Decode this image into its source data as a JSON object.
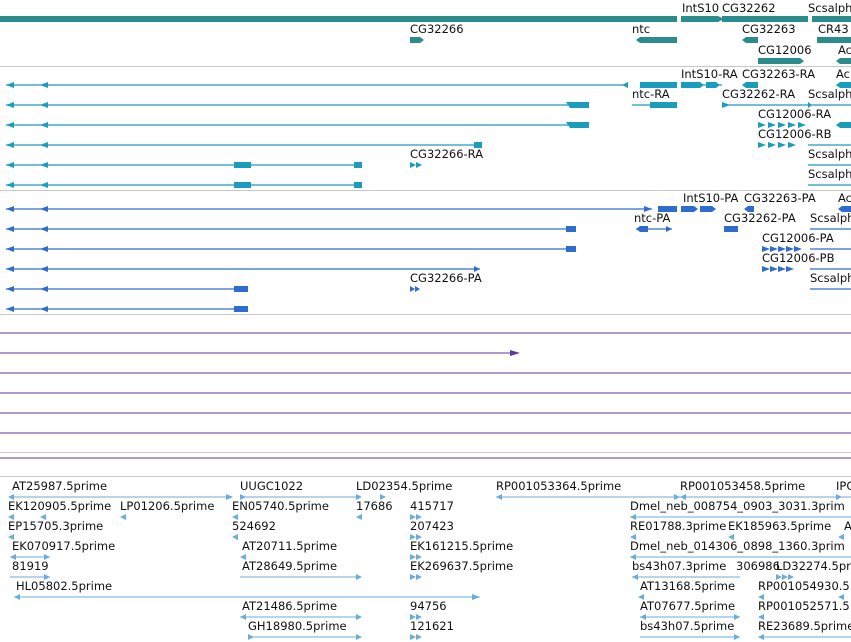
{
  "colors": {
    "gene": "#2a8c8c",
    "transcript": "#1a9cbc",
    "protein": "#2e6cd0",
    "alignment": "#5a3a9a",
    "est": "#6aaed8",
    "separator": "#c8c8c8"
  },
  "gene_labels": [
    "IntS10",
    "CG32262",
    "Scsalpha",
    "CG32263",
    "CR43",
    "CG32266",
    "ntc",
    "CG12006",
    "Ac"
  ],
  "transcript_labels": [
    "IntS10-RA",
    "CG32263-RA",
    "Ac",
    "ntc-RA",
    "CG32262-RA",
    "Scsalph",
    "CG12006-RA",
    "CG12006-RB",
    "Scsalph",
    "CG32266-RA",
    "Scsalph"
  ],
  "protein_labels": [
    "IntS10-PA",
    "CG32263-PA",
    "Ac",
    "ntc-PA",
    "CG32262-PA",
    "Scsalph",
    "CG12006-PA",
    "CG12006-PB",
    "Scsalph",
    "CG32266-PA"
  ],
  "est_labels": [
    "AT25987.5prime",
    "UUGC1022",
    "LD02354.5prime",
    "RP001053364.5prime",
    "RP001053458.5prime",
    "IPC",
    "EK120905.5prime",
    "LP01206.5prime",
    "EN05740.5prime",
    "17686",
    "415717",
    "Dmel_neb_008754_0903_3031.3prim",
    "EP15705.3prime",
    "524692",
    "207423",
    "RE01788.3prime",
    "EK185963.5prime",
    "A",
    "EK070917.5prime",
    "AT20711.5prime",
    "EK161215.5prime",
    "Dmel_neb_014306_0898_1360.3prim",
    "81919",
    "AT28649.5prime",
    "EK269637.5prime",
    "bs43h07.3prime",
    "306986",
    "LD32274.5prim",
    "HL05802.5prime",
    "AT13168.5prime",
    "RP001054930.5",
    "AT21486.5prime",
    "94756",
    "AT07677.5prime",
    "RP001052571.5",
    "GH18980.5prime",
    "121621",
    "bs43h07.5prime",
    "RE23689.5prime"
  ]
}
